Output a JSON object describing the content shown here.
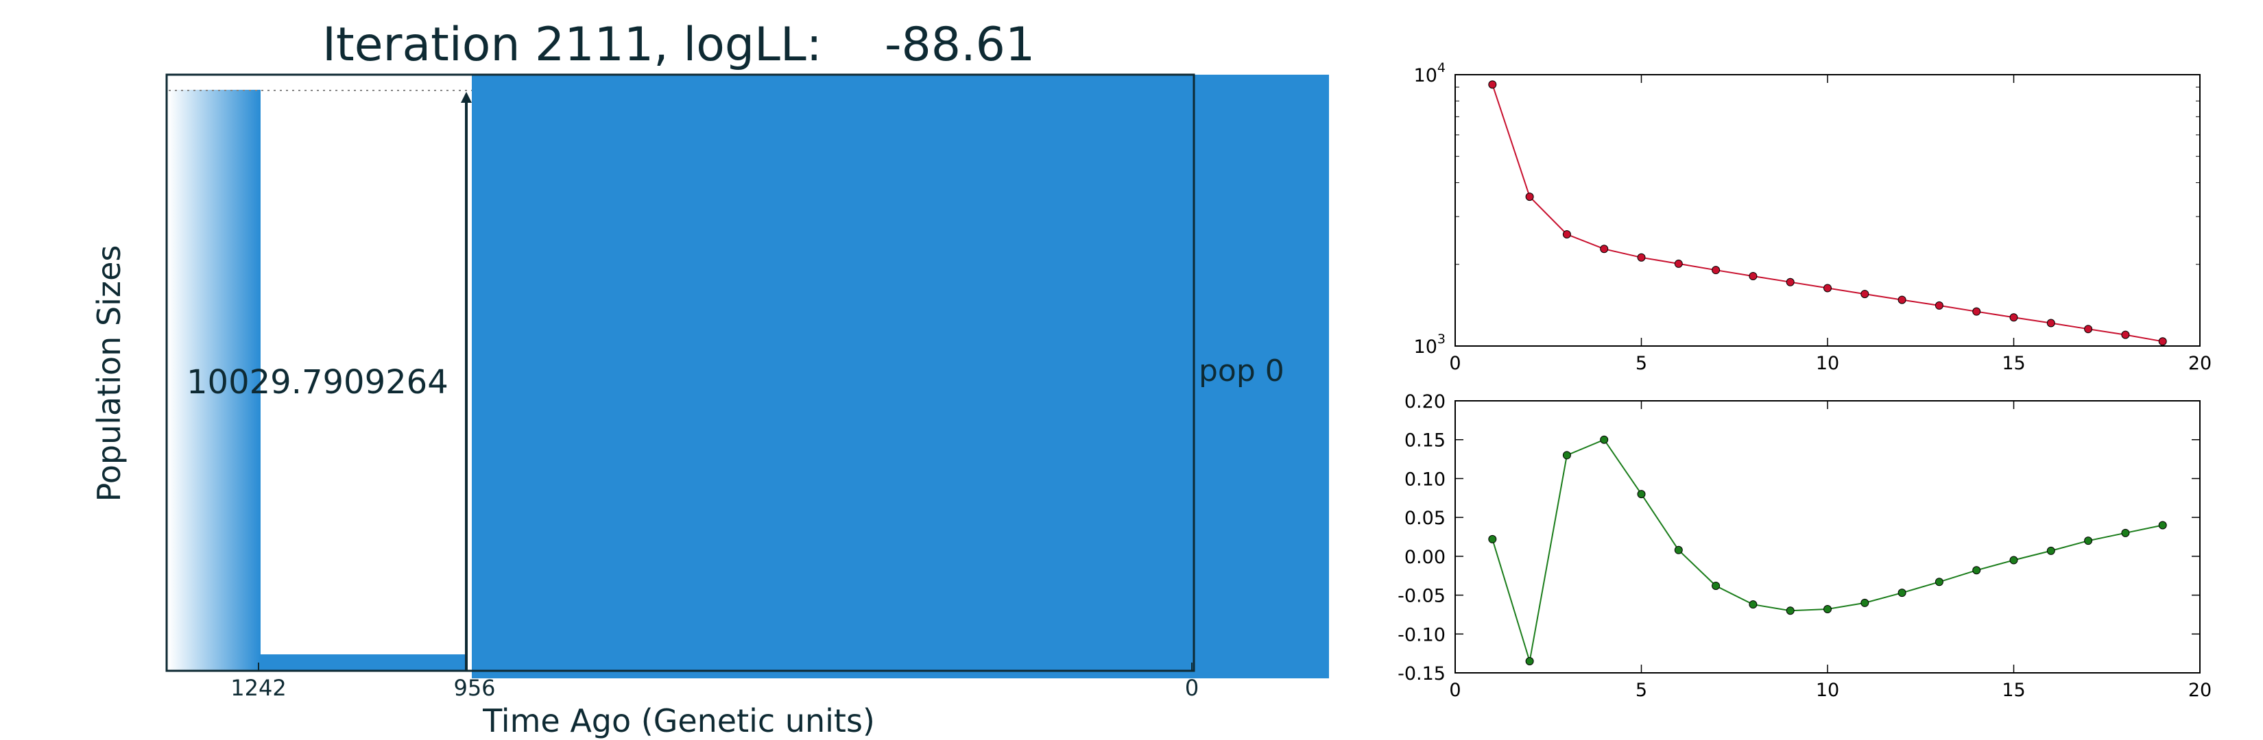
{
  "colors": {
    "pop_fill": "#288bd4",
    "ink": "#0e2a33",
    "red_series": "#c8102e",
    "green_series": "#1b7d1b",
    "axis": "#000000"
  },
  "demography": {
    "title_prefix": "Iteration 2111, logLL:",
    "title_value": "-88.61",
    "ylabel": "Population Sizes",
    "xlabel": "Time Ago (Genetic units)",
    "size_label": "10029.7909264",
    "pop_label": "pop 0",
    "xticks": [
      "1242",
      "956",
      "0"
    ]
  },
  "chart_data": [
    {
      "type": "line",
      "scale_y": "log",
      "xlim": [
        0,
        20
      ],
      "ylim": [
        1000,
        10000
      ],
      "xticks": [
        "0",
        "5",
        "10",
        "15",
        "20"
      ],
      "yticks": [
        {
          "base": "10",
          "exp": "4",
          "value": 10000
        },
        {
          "base": "10",
          "exp": "3",
          "value": 1000
        }
      ],
      "x": [
        1,
        2,
        3,
        4,
        5,
        6,
        7,
        8,
        9,
        10,
        11,
        12,
        13,
        14,
        15,
        16,
        17,
        18,
        19
      ],
      "y": [
        9200,
        3550,
        2580,
        2280,
        2120,
        2010,
        1905,
        1810,
        1720,
        1635,
        1555,
        1480,
        1410,
        1340,
        1275,
        1215,
        1155,
        1100,
        1040
      ],
      "color": "#c8102e"
    },
    {
      "type": "line",
      "xlim": [
        0,
        20
      ],
      "ylim": [
        -0.15,
        0.2
      ],
      "xticks": [
        "0",
        "5",
        "10",
        "15",
        "20"
      ],
      "yticks": [
        "0.20",
        "0.15",
        "0.10",
        "0.05",
        "0.00",
        "-0.05",
        "-0.10",
        "-0.15"
      ],
      "x": [
        1,
        2,
        3,
        4,
        5,
        6,
        7,
        8,
        9,
        10,
        11,
        12,
        13,
        14,
        15,
        16,
        17,
        18,
        19
      ],
      "y": [
        0.022,
        -0.135,
        0.13,
        0.15,
        0.08,
        0.008,
        -0.038,
        -0.062,
        -0.07,
        -0.068,
        -0.06,
        -0.047,
        -0.033,
        -0.018,
        -0.005,
        0.007,
        0.02,
        0.03,
        0.04
      ],
      "color": "#1b7d1b"
    }
  ]
}
